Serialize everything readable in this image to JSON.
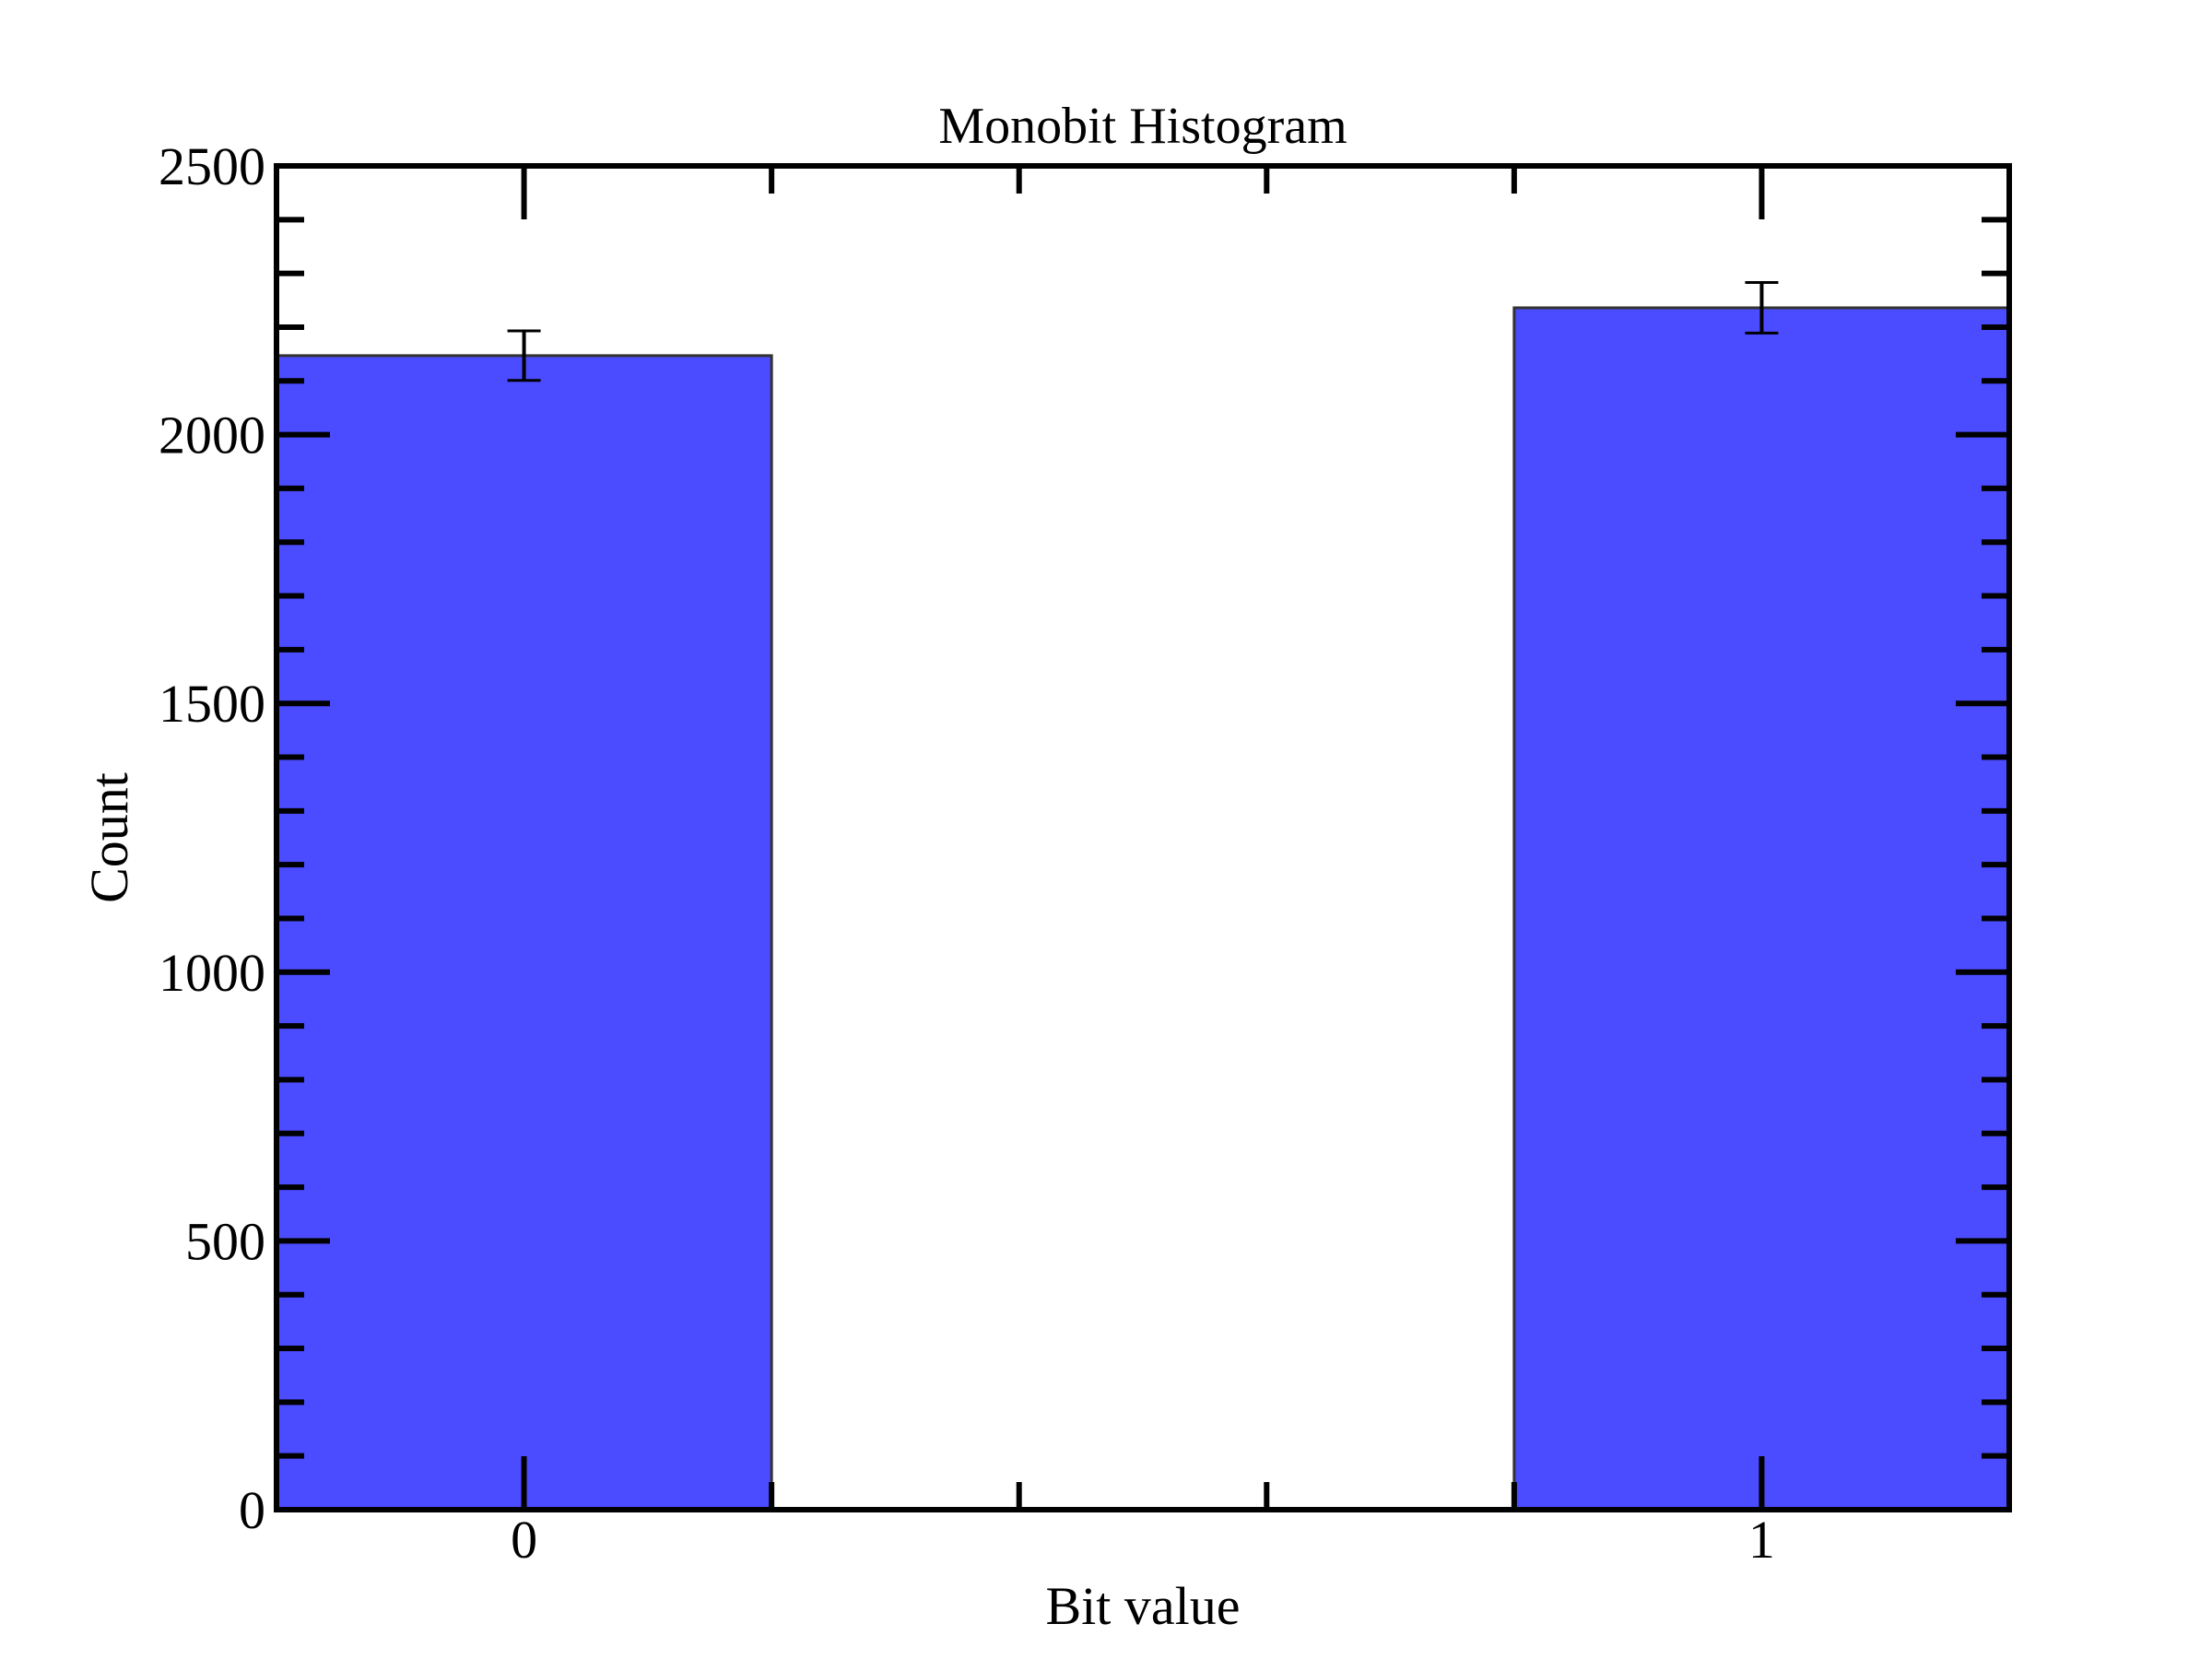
{
  "chart_data": {
    "type": "bar",
    "title": "Monobit Histogram",
    "xlabel": "Bit value",
    "ylabel": "Count",
    "categories": [
      "0",
      "1"
    ],
    "x": [
      0,
      1
    ],
    "values": [
      2147,
      2236
    ],
    "errors": [
      46,
      47
    ],
    "xlim": [
      -0.2,
      1.2
    ],
    "ylim": [
      0,
      2500
    ],
    "y_major_ticks": [
      0,
      500,
      1000,
      1500,
      2000,
      2500
    ],
    "y_tick_labels": [
      "0",
      "500",
      "1000",
      "1500",
      "2000",
      "2500"
    ],
    "x_major_ticks": [
      0,
      1
    ],
    "x_tick_labels": [
      "0",
      "1"
    ],
    "x_minor_ticks": [
      0.2,
      0.4,
      0.6,
      0.8
    ],
    "y_minor_step": 100,
    "bar_width": 0.4,
    "grid": false,
    "legend": false,
    "colors": {
      "bar_fill": "#4b4bff",
      "bar_edge": "#333333",
      "axis": "#000000",
      "error_bar": "#000000"
    }
  }
}
